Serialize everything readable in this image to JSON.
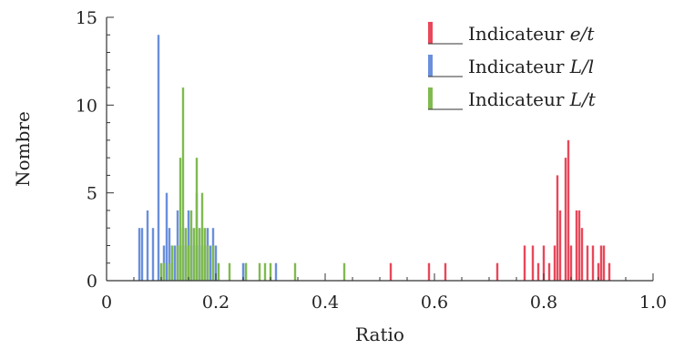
{
  "chart_data": {
    "type": "bar",
    "title": "",
    "xlabel": "Ratio",
    "ylabel": "Nombre",
    "xlim": [
      0,
      1
    ],
    "ylim": [
      0,
      15
    ],
    "x_ticks": [
      {
        "value": 0,
        "label": "0"
      },
      {
        "value": 0.2,
        "label": "0.2"
      },
      {
        "value": 0.4,
        "label": "0.4"
      },
      {
        "value": 0.6,
        "label": "0.6"
      },
      {
        "value": 0.8,
        "label": "0.8"
      },
      {
        "value": 1.0,
        "label": "1.0"
      }
    ],
    "y_ticks": [
      {
        "value": 0,
        "label": "0"
      },
      {
        "value": 5,
        "label": "5"
      },
      {
        "value": 10,
        "label": "10"
      },
      {
        "value": 15,
        "label": "15"
      }
    ],
    "grid": false,
    "legend_position": "top-right",
    "series": [
      {
        "name": "Indicateur e/t",
        "label_prefix": "Indicateur ",
        "label_var": "e/t",
        "color": "#e8485a",
        "x": [
          0.52,
          0.59,
          0.62,
          0.715,
          0.765,
          0.78,
          0.79,
          0.8,
          0.81,
          0.82,
          0.825,
          0.83,
          0.84,
          0.845,
          0.85,
          0.86,
          0.865,
          0.87,
          0.88,
          0.89,
          0.9,
          0.905,
          0.91,
          0.92
        ],
        "values": [
          1,
          1,
          1,
          1,
          2,
          2,
          1,
          2,
          1,
          2,
          6,
          4,
          7,
          8,
          2,
          4,
          4,
          3,
          2,
          2,
          1,
          2,
          2,
          1
        ]
      },
      {
        "name": "Indicateur L/l",
        "label_prefix": "Indicateur ",
        "label_var": "L/l",
        "color": "#6a8fdc",
        "x": [
          0.06,
          0.065,
          0.075,
          0.085,
          0.095,
          0.105,
          0.11,
          0.115,
          0.12,
          0.125,
          0.13,
          0.135,
          0.14,
          0.145,
          0.15,
          0.155,
          0.16,
          0.165,
          0.17,
          0.175,
          0.18,
          0.185,
          0.19,
          0.195,
          0.2,
          0.25,
          0.255,
          0.31
        ],
        "values": [
          3,
          3,
          4,
          3,
          14,
          2,
          5,
          3,
          2,
          2,
          4,
          2,
          3,
          2,
          4,
          3,
          2,
          5,
          2,
          3,
          2,
          3,
          2,
          3,
          2,
          1,
          1,
          1
        ]
      },
      {
        "name": "Indicateur L/t",
        "label_prefix": "Indicateur ",
        "label_var": "L/t",
        "color": "#7fba4f",
        "x": [
          0.1,
          0.105,
          0.115,
          0.12,
          0.13,
          0.135,
          0.14,
          0.145,
          0.15,
          0.155,
          0.16,
          0.165,
          0.17,
          0.175,
          0.18,
          0.185,
          0.195,
          0.205,
          0.225,
          0.255,
          0.28,
          0.29,
          0.3,
          0.345,
          0.435
        ],
        "values": [
          1,
          1,
          1,
          2,
          2,
          7,
          11,
          3,
          2,
          4,
          3,
          7,
          3,
          5,
          3,
          2,
          2,
          1,
          1,
          1,
          1,
          1,
          1,
          1,
          1
        ]
      }
    ]
  }
}
